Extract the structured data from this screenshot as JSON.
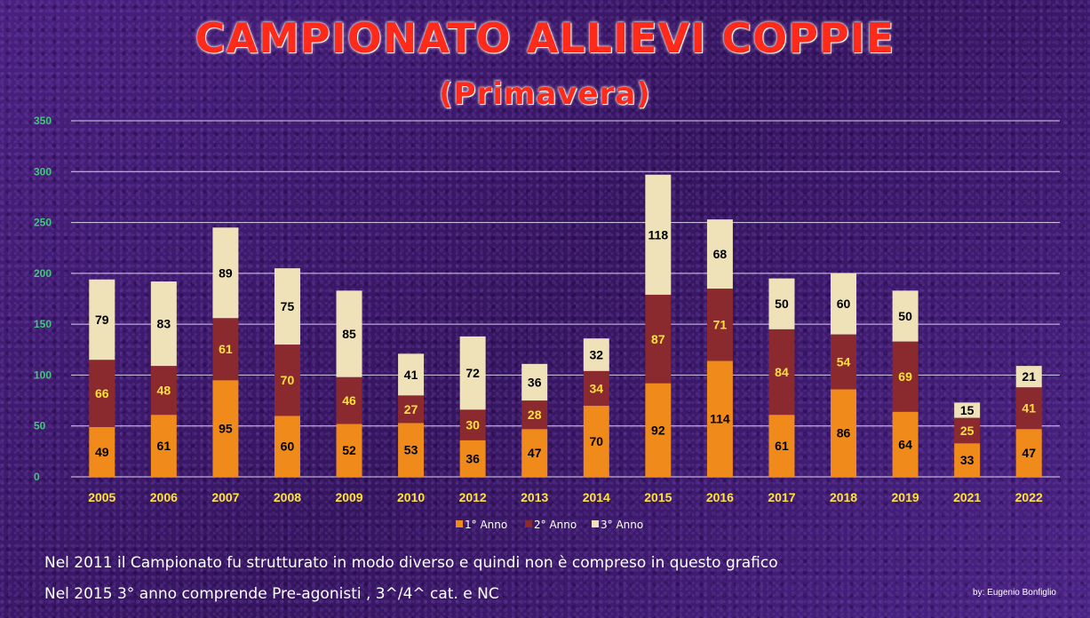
{
  "title": "CAMPIONATO ALLIEVI COPPIE",
  "subtitle": "(Primavera)",
  "notes": [
    "Nel 2011 il Campionato fu strutturato in modo diverso e quindi non è compreso in questo grafico",
    "Nel 2015 3° anno comprende Pre-agonisti , 3^/4^ cat. e NC"
  ],
  "credit": "by: Eugenio Bonfiglio",
  "chart_data": {
    "type": "bar",
    "stacked": true,
    "categories": [
      "2005",
      "2006",
      "2007",
      "2008",
      "2009",
      "2010",
      "2012",
      "2013",
      "2014",
      "2015",
      "2016",
      "2017",
      "2018",
      "2019",
      "2021",
      "2022"
    ],
    "series": [
      {
        "name": "1° Anno",
        "color": "#f08a1a",
        "label_color": "#000000",
        "values": [
          49,
          61,
          95,
          60,
          52,
          53,
          36,
          47,
          70,
          92,
          114,
          61,
          86,
          64,
          33,
          47
        ]
      },
      {
        "name": "2° Anno",
        "color": "#8b2a2e",
        "label_color": "#ffe23a",
        "values": [
          66,
          48,
          61,
          70,
          46,
          27,
          30,
          28,
          34,
          87,
          71,
          84,
          54,
          69,
          25,
          41
        ]
      },
      {
        "name": "3° Anno",
        "color": "#efe2b8",
        "label_color": "#000000",
        "values": [
          79,
          83,
          89,
          75,
          85,
          41,
          72,
          36,
          32,
          118,
          68,
          50,
          60,
          50,
          15,
          21
        ]
      }
    ],
    "ylim": [
      0,
      350
    ],
    "yticks": [
      0,
      50,
      100,
      150,
      200,
      250,
      300,
      350
    ],
    "grid": true,
    "legend": "bottom",
    "tick_color": "#ffe23a",
    "ytick_color": "#3fc97a"
  }
}
